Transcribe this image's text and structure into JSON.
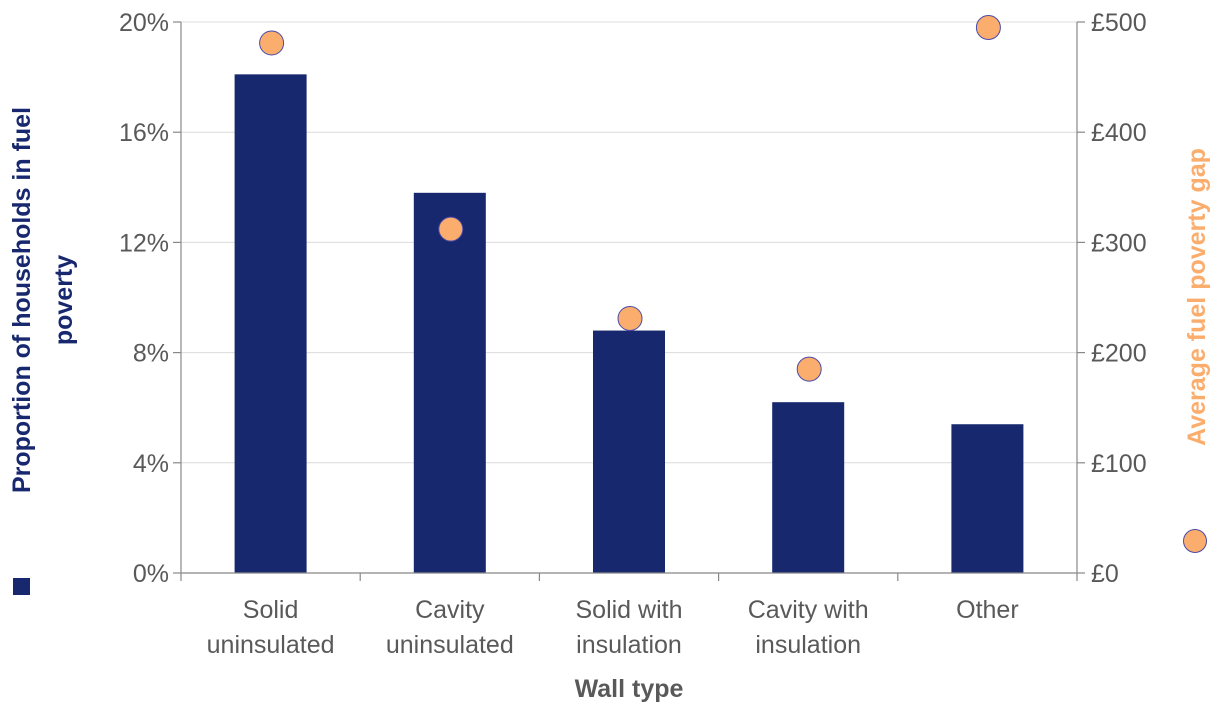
{
  "chart_data": {
    "type": "bar",
    "categories": [
      [
        "Solid",
        "uninsulated"
      ],
      [
        "Cavity",
        "uninsulated"
      ],
      [
        "Solid with",
        "insulation"
      ],
      [
        "Cavity with",
        "insulation"
      ],
      [
        "Other"
      ]
    ],
    "series": [
      {
        "name": "Proportion of households in fuel poverty",
        "type": "bar",
        "axis": "left",
        "color": "#17286f",
        "values": [
          18.1,
          13.8,
          8.8,
          6.2,
          5.4
        ]
      },
      {
        "name": "Average fuel poverty gap",
        "type": "scatter",
        "axis": "right",
        "color": "#fbad6d",
        "values": [
          481,
          312,
          231,
          185,
          495
        ]
      }
    ],
    "xlabel": "Wall type",
    "ylabel_left": [
      "Proportion of households in fuel",
      "poverty"
    ],
    "ylabel_right": "Average fuel poverty gap",
    "y_left": {
      "lim": [
        0,
        20
      ],
      "ticks": [
        "0%",
        "4%",
        "8%",
        "12%",
        "16%",
        "20%"
      ],
      "values": [
        0,
        4,
        8,
        12,
        16,
        20
      ]
    },
    "y_right": {
      "lim": [
        0,
        500
      ],
      "ticks": [
        "£0",
        "£100",
        "£200",
        "£300",
        "£400",
        "£500"
      ],
      "values": [
        0,
        100,
        200,
        300,
        400,
        500
      ]
    },
    "grid": true,
    "legend_position": "left and right of the axis titles"
  }
}
